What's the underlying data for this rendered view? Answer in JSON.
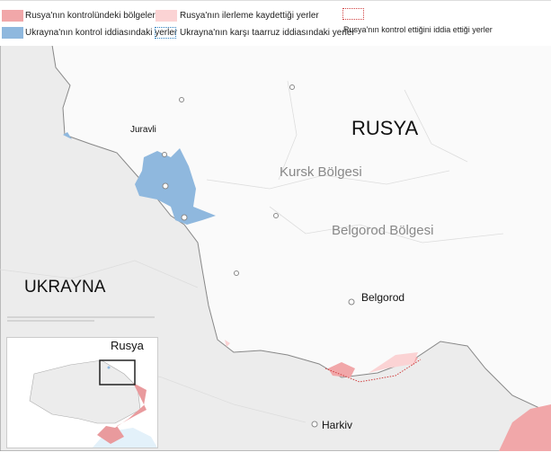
{
  "legend": {
    "russia_controlled": "Rusya'nın kontrolündeki bölgeler",
    "russia_advanced": "Rusya'nın ilerleme kaydettiği yerler",
    "russia_claimed": "Rusya'nın kontrol ettiğini iddia ettiği yerler",
    "ukraine_claimed": "Ukrayna'nın kontrol iddiasındaki yerler",
    "ukraine_counter": "Ukrayna'nın karşı taarruz iddiasındaki yerler"
  },
  "colors": {
    "russia_controlled": "#f1a7a9",
    "russia_advanced": "#fbd3d4",
    "ukraine": "#8fb8de",
    "ukraine_land": "#ececec"
  },
  "map": {
    "countries": {
      "russia": "RUSYA",
      "ukraine": "UKRAYNA"
    },
    "regions": {
      "kursk": "Kursk Bölgesi",
      "belgorod": "Belgorod Bölgesi"
    },
    "cities": {
      "juravli": "Juravli",
      "belgorod": "Belgorod",
      "kharkiv": "Harkiv"
    }
  },
  "inset": {
    "label": "Rusya"
  }
}
